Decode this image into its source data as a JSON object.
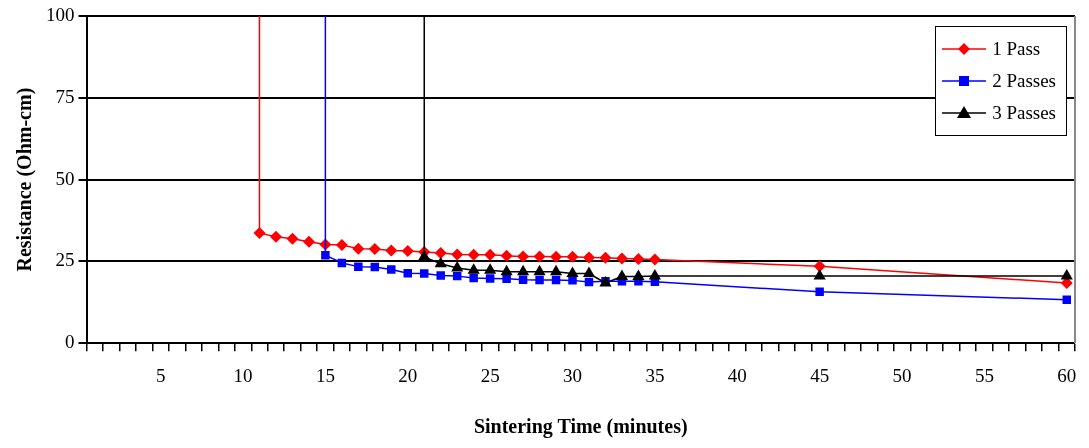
{
  "chart_data": {
    "type": "line",
    "xlabel": "Sintering Time (minutes)",
    "ylabel": "Resistance (Ohm-cm)",
    "xlim": [
      0.5,
      60.5
    ],
    "xticks": [
      5,
      10,
      15,
      20,
      25,
      30,
      35,
      40,
      45,
      50,
      55,
      60,
      {
        "value": 0.5,
        "label": null
      },
      {
        "value": 1.5,
        "label": null
      },
      {
        "value": 2.5,
        "label": null
      },
      {
        "value": 3.5,
        "label": null
      },
      {
        "value": 4.5,
        "label": null
      },
      {
        "value": 5.5,
        "label": null
      },
      {
        "value": 6.5,
        "label": null
      },
      {
        "value": 7.5,
        "label": null
      },
      {
        "value": 8.5,
        "label": null
      },
      {
        "value": 9.5,
        "label": null
      },
      {
        "value": 10.5,
        "label": null
      },
      {
        "value": 11.5,
        "label": null
      },
      {
        "value": 12.5,
        "label": null
      },
      {
        "value": 13.5,
        "label": null
      },
      {
        "value": 14.5,
        "label": null
      },
      {
        "value": 15.5,
        "label": null
      },
      {
        "value": 16.5,
        "label": null
      },
      {
        "value": 17.5,
        "label": null
      },
      {
        "value": 18.5,
        "label": null
      },
      {
        "value": 19.5,
        "label": null
      },
      {
        "value": 20.5,
        "label": null
      },
      {
        "value": 21.5,
        "label": null
      },
      {
        "value": 22.5,
        "label": null
      },
      {
        "value": 23.5,
        "label": null
      },
      {
        "value": 24.5,
        "label": null
      },
      {
        "value": 25.5,
        "label": null
      },
      {
        "value": 26.5,
        "label": null
      },
      {
        "value": 27.5,
        "label": null
      },
      {
        "value": 28.5,
        "label": null
      },
      {
        "value": 29.5,
        "label": null
      },
      {
        "value": 30.5,
        "label": null
      },
      {
        "value": 31.5,
        "label": null
      },
      {
        "value": 32.5,
        "label": null
      },
      {
        "value": 33.5,
        "label": null
      },
      {
        "value": 34.5,
        "label": null
      },
      {
        "value": 35.5,
        "label": null
      },
      {
        "value": 36.5,
        "label": null
      },
      {
        "value": 37.5,
        "label": null
      },
      {
        "value": 38.5,
        "label": null
      },
      {
        "value": 39.5,
        "label": null
      },
      {
        "value": 40.5,
        "label": null
      },
      {
        "value": 41.5,
        "label": null
      },
      {
        "value": 42.5,
        "label": null
      },
      {
        "value": 43.5,
        "label": null
      },
      {
        "value": 44.5,
        "label": null
      },
      {
        "value": 45.5,
        "label": null
      },
      {
        "value": 46.5,
        "label": null
      },
      {
        "value": 47.5,
        "label": null
      },
      {
        "value": 48.5,
        "label": null
      },
      {
        "value": 49.5,
        "label": null
      },
      {
        "value": 50.5,
        "label": null
      },
      {
        "value": 51.5,
        "label": null
      },
      {
        "value": 52.5,
        "label": null
      },
      {
        "value": 53.5,
        "label": null
      },
      {
        "value": 54.5,
        "label": null
      },
      {
        "value": 55.5,
        "label": null
      },
      {
        "value": 56.5,
        "label": null
      },
      {
        "value": 57.5,
        "label": null
      },
      {
        "value": 58.5,
        "label": null
      },
      {
        "value": 59.5,
        "label": null
      },
      {
        "value": 60.5,
        "label": null
      }
    ],
    "ylim": [
      0,
      100
    ],
    "yticks": [
      0,
      25,
      50,
      75,
      100
    ],
    "grid": "y",
    "legend": "top right",
    "line_style": "solid",
    "series": [
      {
        "name": "1 Pass",
        "color": "#ff0000",
        "marker": "diamond",
        "x": [
          11,
          11,
          12,
          13,
          14,
          15,
          16,
          17,
          18,
          19,
          20,
          21,
          22,
          23,
          24,
          25,
          26,
          27,
          28,
          29,
          30,
          31,
          32,
          33,
          34,
          35,
          45,
          60
        ],
        "values": [
          100,
          33.7,
          32.5,
          31.9,
          31.0,
          30.2,
          30.0,
          28.9,
          28.8,
          28.3,
          28.2,
          27.9,
          27.6,
          27.1,
          27.0,
          27.0,
          26.7,
          26.5,
          26.5,
          26.4,
          26.4,
          26.2,
          26.1,
          25.9,
          25.7,
          25.6,
          23.5,
          18.4
        ]
      },
      {
        "name": "2 Passes",
        "color": "#0000ff",
        "marker": "square",
        "x": [
          15,
          15,
          16,
          17,
          18,
          19,
          20,
          21,
          22,
          23,
          24,
          25,
          26,
          27,
          28,
          29,
          30,
          31,
          32,
          33,
          34,
          35,
          45,
          60
        ],
        "values": [
          100,
          26.9,
          24.5,
          23.4,
          23.3,
          22.5,
          21.4,
          21.3,
          20.7,
          20.5,
          19.9,
          19.8,
          19.7,
          19.4,
          19.3,
          19.3,
          19.2,
          18.7,
          18.9,
          18.9,
          18.9,
          18.8,
          15.7,
          13.3
        ]
      },
      {
        "name": "3 Passes",
        "color": "#000000",
        "marker": "triangle",
        "x": [
          21,
          21,
          22,
          23,
          24,
          25,
          26,
          27,
          28,
          29,
          30,
          31,
          32,
          33,
          34,
          35,
          45,
          60
        ],
        "values": [
          100,
          26.4,
          24.3,
          23.0,
          22.3,
          22.3,
          21.8,
          21.8,
          21.8,
          21.8,
          21.3,
          21.3,
          18.4,
          20.4,
          20.4,
          20.5,
          20.5,
          20.5
        ]
      }
    ]
  }
}
